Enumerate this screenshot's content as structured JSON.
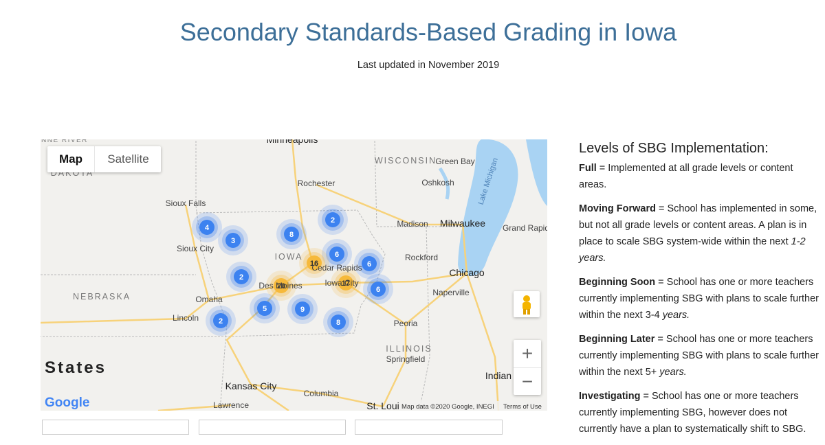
{
  "header": {
    "title": "Secondary Standards-Based Grading in Iowa",
    "subtitle": "Last updated in November 2019"
  },
  "map": {
    "controls": {
      "map": "Map",
      "satellite": "Satellite",
      "zoom_in": "+",
      "zoom_out": "−"
    },
    "labels": [
      "NNE RIVER",
      "Minneapolis",
      "WISCONSIN",
      "Green Bay",
      "DAKOTA",
      "Rochester",
      "Oshkosh",
      "Lake Michigan",
      "Sioux Falls",
      "Madison",
      "Milwaukee",
      "Grand Rapid",
      "Sioux City",
      "IOWA",
      "Cedar Rapids",
      "Rockford",
      "Des Moines",
      "Iowa City",
      "Chicago",
      "NEBRASKA",
      "Omaha",
      "Naperville",
      "Lincoln",
      "Peoria",
      "ILLINOIS",
      "States",
      "Springfield",
      "Indian",
      "Kansas City",
      "Columbia",
      "Lawrence",
      "St. Loui"
    ],
    "clusters": [
      "4",
      "3",
      "8",
      "2",
      "6",
      "16",
      "6",
      "2",
      "20",
      "17",
      "6",
      "5",
      "9",
      "2",
      "8"
    ],
    "logo": "Google",
    "attribution": "Map data ©2020 Google, INEGI",
    "terms": "Terms of Use"
  },
  "legend": {
    "heading": "Levels of SBG Implementation:",
    "items": [
      {
        "term": "Full",
        "text": " = Implemented at all grade levels or content areas."
      },
      {
        "term": "Moving Forward",
        "text": " = School has implemented in some, but not all grade levels or content areas. A plan is in place to scale SBG system-wide within the next ",
        "emphasis": "1-2 years."
      },
      {
        "term": "Beginning Soon",
        "text": " =  School has one or more teachers currently implementing SBG with plans to scale further within the next 3-4 ",
        "emphasis": "years."
      },
      {
        "term": "Beginning Later",
        "text": " =  School has one or more teachers currently implementing SBG with plans to scale further within the next 5+ ",
        "emphasis": "years."
      },
      {
        "term": "Investigating",
        "text": " = School has one or more teachers currently implementing SBG, however  does not currently have a plan to systematically shift to SBG."
      }
    ]
  }
}
